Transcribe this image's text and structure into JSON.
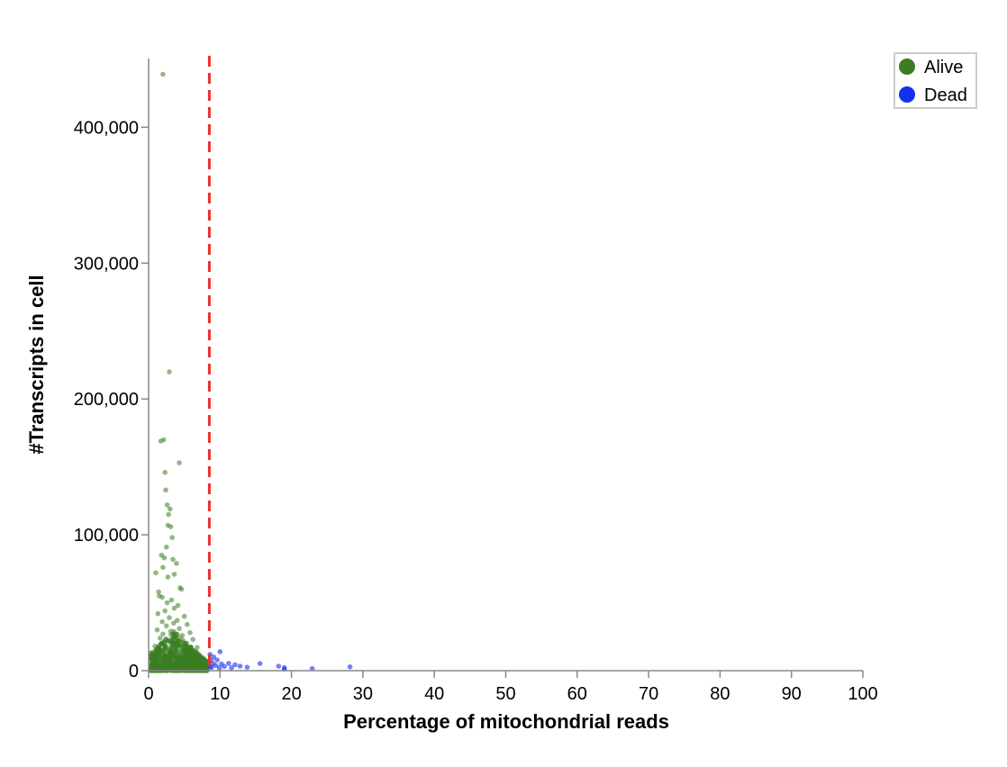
{
  "chart_data": {
    "type": "scatter",
    "xlabel": "Percentage of mitochondrial reads",
    "ylabel": "#Transcripts in cell",
    "xlim": [
      0,
      100
    ],
    "ylim": [
      0,
      450000
    ],
    "x_ticks": [
      0,
      10,
      20,
      30,
      40,
      50,
      60,
      70,
      80,
      90,
      100
    ],
    "y_ticks": [
      0,
      100000,
      200000,
      300000,
      400000
    ],
    "y_tick_labels": [
      "0",
      "100,000",
      "200,000",
      "300,000",
      "400,000"
    ],
    "grid": false,
    "legend_position": "top-right",
    "threshold": {
      "x": 8.5,
      "style": "dashed",
      "color": "#e8302a"
    },
    "series": [
      {
        "name": "Alive",
        "color": "#3a7d22",
        "points": [
          [
            2.0,
            439000
          ],
          [
            2.9,
            220000
          ],
          [
            1.7,
            169000
          ],
          [
            2.1,
            170000
          ],
          [
            4.3,
            153000
          ],
          [
            2.3,
            146000
          ],
          [
            2.4,
            133000
          ],
          [
            2.6,
            122000
          ],
          [
            3.0,
            119000
          ],
          [
            2.8,
            115000
          ],
          [
            2.7,
            107000
          ],
          [
            3.1,
            106000
          ],
          [
            3.3,
            98000
          ],
          [
            2.5,
            91000
          ],
          [
            1.8,
            85000
          ],
          [
            2.2,
            83000
          ],
          [
            3.4,
            82000
          ],
          [
            3.9,
            79000
          ],
          [
            2.0,
            76000
          ],
          [
            1.0,
            72000
          ],
          [
            3.6,
            71000
          ],
          [
            2.7,
            69000
          ],
          [
            4.4,
            61000
          ],
          [
            4.6,
            60000
          ],
          [
            1.4,
            58000
          ],
          [
            1.5,
            55000
          ],
          [
            1.9,
            54000
          ],
          [
            3.2,
            52000
          ],
          [
            2.6,
            50000
          ],
          [
            4.1,
            48000
          ],
          [
            3.6,
            46000
          ],
          [
            2.3,
            44000
          ],
          [
            1.3,
            42000
          ],
          [
            5.0,
            40000
          ],
          [
            2.9,
            39000
          ],
          [
            4.0,
            37000
          ],
          [
            1.9,
            36000
          ],
          [
            3.5,
            35000
          ],
          [
            5.4,
            34000
          ],
          [
            2.5,
            33000
          ],
          [
            4.3,
            31000
          ],
          [
            1.2,
            30000
          ],
          [
            3.1,
            29000
          ],
          [
            5.8,
            28000
          ],
          [
            2.0,
            27000
          ],
          [
            4.7,
            26000
          ],
          [
            3.8,
            25000
          ],
          [
            1.6,
            24000
          ],
          [
            6.2,
            23000
          ],
          [
            2.8,
            22000
          ],
          [
            4.1,
            21000
          ],
          [
            3.4,
            20000
          ],
          [
            5.1,
            19000
          ],
          [
            0.9,
            18000
          ],
          [
            6.8,
            17000
          ],
          [
            2.4,
            16000
          ],
          [
            4.9,
            15000
          ],
          [
            3.7,
            14000
          ],
          [
            5.6,
            13000
          ],
          [
            1.4,
            12000
          ],
          [
            7.2,
            11000
          ],
          [
            3.0,
            10500
          ],
          [
            4.5,
            10000
          ],
          [
            6.0,
            9500
          ],
          [
            2.1,
            9000
          ],
          [
            7.6,
            8500
          ],
          [
            5.2,
            8000
          ],
          [
            1.0,
            7500
          ],
          [
            3.9,
            7000
          ],
          [
            6.5,
            6500
          ],
          [
            2.7,
            6000
          ],
          [
            8.0,
            5500
          ],
          [
            4.8,
            5000
          ],
          [
            0.7,
            4500
          ],
          [
            3.3,
            4000
          ],
          [
            7.0,
            3500
          ],
          [
            5.5,
            3000
          ],
          [
            1.8,
            2500
          ],
          [
            6.3,
            2000
          ],
          [
            4.2,
            1500
          ]
        ]
      },
      {
        "name": "Dead",
        "color": "#1430ec",
        "points": [
          [
            28.2,
            2800
          ],
          [
            22.9,
            1500
          ],
          [
            19.0,
            2200
          ],
          [
            18.2,
            3300
          ],
          [
            15.6,
            5300
          ],
          [
            13.8,
            2500
          ],
          [
            12.8,
            3300
          ],
          [
            12.1,
            4400
          ],
          [
            11.6,
            2200
          ],
          [
            11.2,
            5400
          ],
          [
            10.6,
            3100
          ],
          [
            10.2,
            4900
          ],
          [
            10.0,
            14000
          ],
          [
            9.9,
            1900
          ],
          [
            9.6,
            7900
          ],
          [
            9.4,
            3900
          ],
          [
            9.1,
            10000
          ],
          [
            9.0,
            5400
          ],
          [
            8.8,
            2400
          ],
          [
            8.7,
            7700
          ],
          [
            8.6,
            12000
          ],
          [
            8.6,
            3000
          ],
          [
            19.0,
            1100
          ]
        ]
      }
    ]
  },
  "colors": {
    "alive": "#3a7d22",
    "dead": "#1430ec",
    "threshold": "#e8302a",
    "axis": "#888888"
  }
}
